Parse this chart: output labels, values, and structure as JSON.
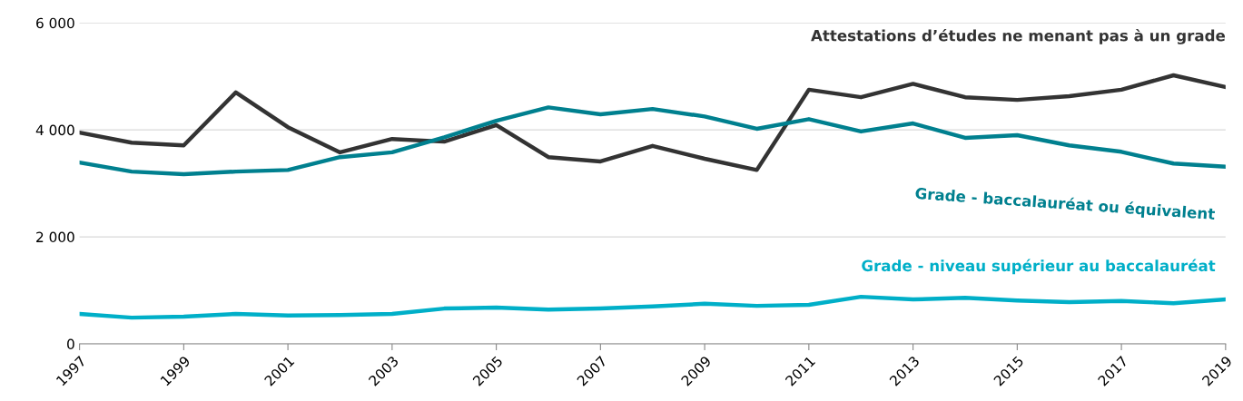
{
  "chart_data": {
    "type": "line",
    "x": [
      1997,
      1998,
      1999,
      2000,
      2001,
      2002,
      2003,
      2004,
      2005,
      2006,
      2007,
      2008,
      2009,
      2010,
      2011,
      2012,
      2013,
      2014,
      2015,
      2016,
      2017,
      2018,
      2019
    ],
    "series": [
      {
        "name": "Attestations d’études ne menant pas à un grade",
        "color": "#333333",
        "values": [
          3950,
          3760,
          3710,
          4700,
          4050,
          3580,
          3830,
          3780,
          4090,
          3490,
          3410,
          3700,
          3460,
          3250,
          4750,
          4610,
          4860,
          4610,
          4560,
          4630,
          4750,
          5020,
          4800
        ]
      },
      {
        "name": "Grade - baccalauréat ou équivalent",
        "color": "#00808f",
        "values": [
          3390,
          3220,
          3170,
          3220,
          3250,
          3490,
          3580,
          3860,
          4170,
          4420,
          4290,
          4390,
          4250,
          4020,
          4200,
          3970,
          4120,
          3850,
          3900,
          3710,
          3590,
          3370,
          3310
        ]
      },
      {
        "name": "Grade - niveau supérieur au baccalauréat",
        "color": "#00afc8",
        "values": [
          560,
          490,
          510,
          560,
          530,
          540,
          560,
          660,
          680,
          640,
          660,
          700,
          750,
          710,
          730,
          880,
          830,
          860,
          810,
          780,
          800,
          760,
          830
        ]
      }
    ],
    "xlim": [
      1997,
      2019
    ],
    "xticks": [
      1997,
      1999,
      2001,
      2003,
      2005,
      2007,
      2009,
      2011,
      2013,
      2015,
      2017,
      2019
    ],
    "ylim": [
      0,
      6000
    ],
    "yticks": [
      {
        "value": 0,
        "label": "0"
      },
      {
        "value": 2000,
        "label": "2 000"
      },
      {
        "value": 4000,
        "label": "4 000"
      },
      {
        "value": 6000,
        "label": "6 000"
      }
    ],
    "grid": "y",
    "legend": false,
    "marker": "none",
    "line_style": "solid"
  }
}
